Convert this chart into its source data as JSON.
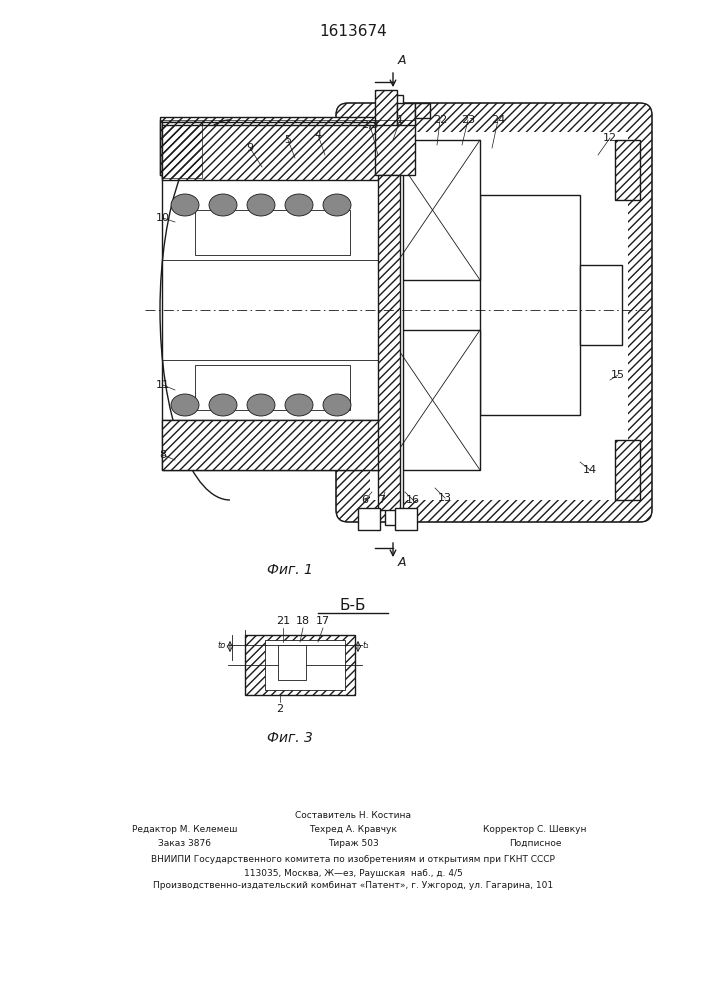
{
  "patent_number": "1613674",
  "fig1_caption": "Фиг. 1",
  "fig3_caption": "Фиг. 3",
  "section_label": "Б-Б",
  "arrow_label": "A",
  "footer_line1": "Составитель Н. Костина",
  "footer_line2_left": "Редактор М. Келемеш",
  "footer_line2_mid": "Техред А. Кравчук",
  "footer_line2_right": "Корректор С. Шевкун",
  "footer_line3_left": "Заказ 3876",
  "footer_line3_mid": "Тираж 503",
  "footer_line3_right": "Подписное",
  "footer_line4": "ВНИИПИ Государственного комитета по изобретениям и открытиям при ГКНТ СССР",
  "footer_line5": "113035, Москва, Ж—ез, Раушская  наб., д. 4/5",
  "footer_line6": "Производственно-издательский комбинат «Патент», г. Ужгород, ул. Гагарина, 101",
  "bg_color": "#ffffff",
  "line_color": "#1a1a1a",
  "hatch_lw": 0.5,
  "main_lw": 1.0,
  "thin_lw": 0.6
}
